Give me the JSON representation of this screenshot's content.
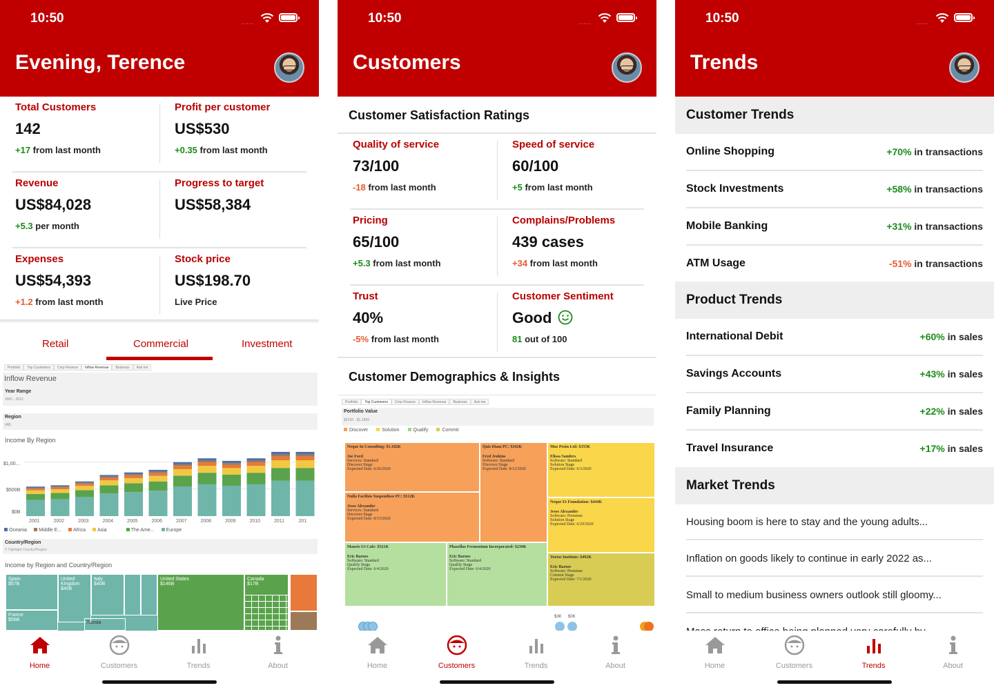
{
  "status": {
    "time": "10:50",
    "signal": "....."
  },
  "colors": {
    "brand": "#c00000",
    "positive": "#1a8a1a",
    "negative": "#e85a30"
  },
  "nav": {
    "home": "Home",
    "customers": "Customers",
    "trends": "Trends",
    "about": "About"
  },
  "dashboard": {
    "title": "Evening, Terence",
    "kpis": [
      {
        "label": "Total Customers",
        "value": "142",
        "change": "+17",
        "suffix": " from last month"
      },
      {
        "label": "Profit per customer",
        "value": "US$530",
        "change": "+0.35",
        "suffix": " from last month"
      },
      {
        "label": "Revenue",
        "value": "US$84,028",
        "change": "+5.3",
        "suffix": " per month"
      },
      {
        "label": "Progress to target",
        "value": "US$58,384",
        "change": "",
        "suffix": ""
      },
      {
        "label": "Expenses",
        "value": "US$54,393",
        "change": "+1.2",
        "suffix": " from last month"
      },
      {
        "label": "Stock price",
        "value": "US$198.70",
        "change": "Live Price",
        "suffix": ""
      }
    ],
    "segments": [
      "Retail",
      "Commercial",
      "Investment"
    ],
    "embed": {
      "tabs": [
        "Portfolio",
        "Top Customers",
        "Corp Finance",
        "Inflow Revenue",
        "Business",
        "Ask me"
      ],
      "heading": "Inflow Revenue",
      "year_range_label": "Year Range",
      "year_range_value": "2001 - 2012",
      "region_label": "Region",
      "region_value": "(All)",
      "chart_title": "Income By Region",
      "y_ticks": [
        "$1,00...",
        "$500B",
        "$0B"
      ],
      "years": [
        "2001",
        "2002",
        "2003",
        "2004",
        "2005",
        "2006",
        "2007",
        "2008",
        "2009",
        "2010",
        "2011",
        "201"
      ],
      "legend": [
        "Oceania",
        "Middle E...",
        "Africa",
        "Asia",
        "The Ame...",
        "Europe"
      ],
      "country_label": "Country/Region",
      "country_placeholder": "Highlight Country/Region",
      "treemap_title": "Income by Region and Country/Region",
      "treemap_labels": [
        {
          "name": "Spain",
          "value": "$57B"
        },
        {
          "name": "United Kingdom",
          "value": "$40B"
        },
        {
          "name": "Italy",
          "value": "$40B"
        },
        {
          "name": "France",
          "value": "$56B"
        },
        {
          "name": "Russia",
          "value": ""
        },
        {
          "name": "United States",
          "value": "$146B"
        },
        {
          "name": "Canada",
          "value": "$17B"
        }
      ]
    }
  },
  "customers": {
    "title": "Customers",
    "section1": "Customer Satisfaction Ratings",
    "ratings": [
      {
        "label": "Quality of service",
        "value": "73/100",
        "change": "-18",
        "suffix": " from last month"
      },
      {
        "label": "Speed of service",
        "value": "60/100",
        "change": "+5",
        "suffix": " from last month"
      },
      {
        "label": "Pricing",
        "value": "65/100",
        "change": "+5.3",
        "suffix": " from last month"
      },
      {
        "label": "Complains/Problems",
        "value": "439 cases",
        "change": "+34",
        "suffix": " from last month"
      },
      {
        "label": "Trust",
        "value": "40%",
        "change": "-5%",
        "suffix": " from last month"
      },
      {
        "label": "Customer Sentiment",
        "value": "Good",
        "change": "81",
        "suffix": " out of 100"
      }
    ],
    "section2": "Customer Demographics & Insights",
    "embed": {
      "tabs": [
        "Portfolio",
        "Top Customers",
        "Corp Finance",
        "Inflow Revenue",
        "Business",
        "Ask me"
      ],
      "heading": "Portfolio Value",
      "range": "$231K - $1,182K",
      "legend": [
        "Discover",
        "Solution",
        "Qualify",
        "Commit"
      ],
      "tiles": [
        {
          "head": "Neque In Consulting: $1,182K",
          "lines": [
            "Joe Ford",
            "Services: Standard",
            "Discover Stage",
            "Expected Date: 6/26/2020"
          ]
        },
        {
          "head": "Quis Diam PC: $342K",
          "lines": [
            "Fred Jenkins",
            "Software: Standard",
            "Discover Stage",
            "Expected Date: 8/12/2020"
          ]
        },
        {
          "head": "Mus Proin Ltd: $355K",
          "lines": [
            "Elissa Sanders",
            "Software: Standard",
            "Solution Stage",
            "Expected Date: 6/3/2020"
          ]
        },
        {
          "head": "Nulla Facilisis Suspendisse PC: $512K",
          "lines": [
            "Jesse Alexander",
            "Services: Standard",
            "Discover Stage",
            "Expected Date: 8/15/2020"
          ]
        },
        {
          "head": "Neque Et Foundation: $444K",
          "lines": [
            "Jesse Alexander",
            "Software: Premium",
            "Solution Stage",
            "Expected Date: 6/29/2020"
          ]
        },
        {
          "head": "Mauris Ut Cafe: $521K",
          "lines": [
            "Eric Barnes",
            "Software: Standard",
            "Qualify Stage",
            "Expected Date: 6/4/2020"
          ]
        },
        {
          "head": "Phasellus Fermentum Incorporated: $239K",
          "lines": [
            "Eric Barnes",
            "Software: Standard",
            "Qualify Stage",
            "Expected Date: 6/4/2020"
          ]
        },
        {
          "head": "Tortor Institute: $492K",
          "lines": [
            "Eric Barnes",
            "Software: Premium",
            "Commit Stage",
            "Expected Date: 7/1/2020"
          ]
        }
      ],
      "scatter_labels": [
        "$3K",
        "$0K"
      ]
    }
  },
  "trends": {
    "title": "Trends",
    "customer_header": "Customer Trends",
    "customer_trends": [
      {
        "name": "Online Shopping",
        "change": "+70%",
        "unit": " in transactions",
        "dir": "up"
      },
      {
        "name": "Stock Investments",
        "change": "+58%",
        "unit": " in transactions",
        "dir": "up"
      },
      {
        "name": "Mobile Banking",
        "change": "+31%",
        "unit": " in transactions",
        "dir": "up"
      },
      {
        "name": "ATM Usage",
        "change": "-51%",
        "unit": " in transactions",
        "dir": "down"
      }
    ],
    "product_header": "Product Trends",
    "product_trends": [
      {
        "name": "International Debit",
        "change": "+60%",
        "unit": " in sales"
      },
      {
        "name": "Savings Accounts",
        "change": "+43%",
        "unit": " in sales"
      },
      {
        "name": "Family Planning",
        "change": "+22%",
        "unit": " in sales"
      },
      {
        "name": "Travel Insurance",
        "change": "+17%",
        "unit": " in sales"
      }
    ],
    "market_header": "Market Trends",
    "market_news": [
      "Housing boom is here to stay and the young adults...",
      "Inflation on goods likely to continue in early 2022 as...",
      "Small to medium business owners outlook still gloomy...",
      "Mass return to office being planned very carefully by..."
    ]
  }
}
